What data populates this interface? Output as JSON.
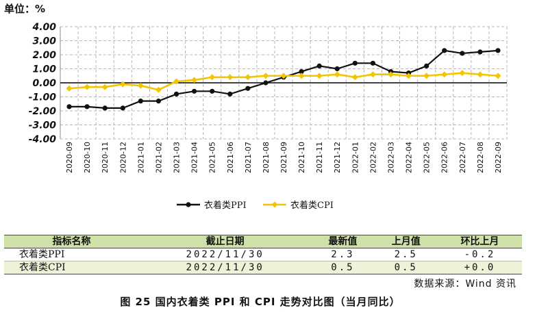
{
  "unit_label": "单位：%",
  "chart_data": {
    "type": "line",
    "x": [
      "2020-09",
      "2020-10",
      "2020-11",
      "2020-12",
      "2021-01",
      "2021-02",
      "2021-03",
      "2021-04",
      "2021-05",
      "2021-06",
      "2021-07",
      "2021-08",
      "2021-09",
      "2021-10",
      "2021-11",
      "2021-12",
      "2022-01",
      "2022-02",
      "2022-03",
      "2022-04",
      "2022-05",
      "2022-06",
      "2022-07",
      "2022-08",
      "2022-09"
    ],
    "y_ticks": [
      "4.00",
      "3.00",
      "2.00",
      "1.00",
      "0.00",
      "-1.00",
      "-2.00",
      "-3.00",
      "-4.00"
    ],
    "ylim": [
      -4,
      4
    ],
    "grid": true,
    "legend_position": "bottom",
    "series": [
      {
        "name": "衣着类PPI",
        "color": "#111111",
        "values": [
          -1.7,
          -1.7,
          -1.8,
          -1.8,
          -1.3,
          -1.3,
          -0.8,
          -0.6,
          -0.6,
          -0.8,
          -0.4,
          0.0,
          0.4,
          0.8,
          1.2,
          1.0,
          1.4,
          1.4,
          0.8,
          0.7,
          1.2,
          2.3,
          2.1,
          2.2,
          2.3
        ]
      },
      {
        "name": "衣着类CPI",
        "color": "#f5c400",
        "values": [
          -0.4,
          -0.3,
          -0.3,
          -0.1,
          -0.2,
          -0.5,
          0.1,
          0.2,
          0.4,
          0.4,
          0.4,
          0.5,
          0.5,
          0.5,
          0.5,
          0.6,
          0.4,
          0.6,
          0.6,
          0.5,
          0.5,
          0.6,
          0.7,
          0.6,
          0.5
        ]
      }
    ]
  },
  "table": {
    "headers": [
      "指标名称",
      "截止日期",
      "最新值",
      "上月值",
      "环比上月"
    ],
    "rows": [
      [
        "衣着类PPI",
        "2022/11/30",
        "2.3",
        "2.5",
        "-0.2"
      ],
      [
        "衣着类CPI",
        "2022/11/30",
        "0.5",
        "0.5",
        "+0.0"
      ]
    ]
  },
  "source": "数据来源：Wind 资讯",
  "caption": "图 25   国内衣着类 PPI 和 CPI 走势对比图（当月同比）"
}
